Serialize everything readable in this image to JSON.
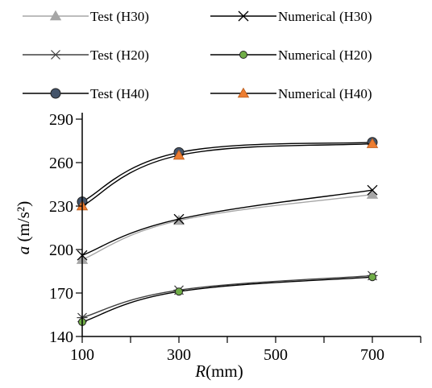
{
  "chart_data": {
    "type": "line",
    "title": "",
    "xlabel": {
      "italic": "R",
      "rest": "(mm)"
    },
    "ylabel": {
      "italic": "a",
      "rest": " (m/s²)"
    },
    "xlim": [
      100,
      800
    ],
    "ylim": [
      140,
      290
    ],
    "xticks": [
      100,
      300,
      500,
      700
    ],
    "yticks": [
      140,
      170,
      200,
      230,
      260,
      290
    ],
    "grid": false,
    "legend_position": "top",
    "series": [
      {
        "name": "Test (H30)",
        "x": [
          100,
          300,
          700
        ],
        "y": [
          193,
          220,
          238
        ],
        "marker": "triangle",
        "marker_color": "#a6a6a6",
        "line_color": "#a6a6a6"
      },
      {
        "name": "Numerical (H30)",
        "x": [
          100,
          300,
          700
        ],
        "y": [
          196,
          221,
          241
        ],
        "marker": "x",
        "marker_color": "#000000",
        "line_color": "#000000"
      },
      {
        "name": "Test (H20)",
        "x": [
          100,
          300,
          700
        ],
        "y": [
          153,
          172,
          182
        ],
        "marker": "star",
        "marker_color": "#404040",
        "line_color": "#404040"
      },
      {
        "name": "Numerical (H20)",
        "x": [
          100,
          300,
          700
        ],
        "y": [
          150,
          171,
          181
        ],
        "marker": "circle",
        "marker_color": "#70ad47",
        "line_color": "#000000"
      },
      {
        "name": "Test (H40)",
        "x": [
          100,
          300,
          700
        ],
        "y": [
          233,
          267,
          274
        ],
        "marker": "circle",
        "marker_color": "#44546a",
        "line_color": "#000000"
      },
      {
        "name": "Numerical (H40)",
        "x": [
          100,
          300,
          700
        ],
        "y": [
          230,
          265,
          273
        ],
        "marker": "triangle",
        "marker_color": "#ed7d31",
        "line_color": "#000000"
      }
    ]
  }
}
